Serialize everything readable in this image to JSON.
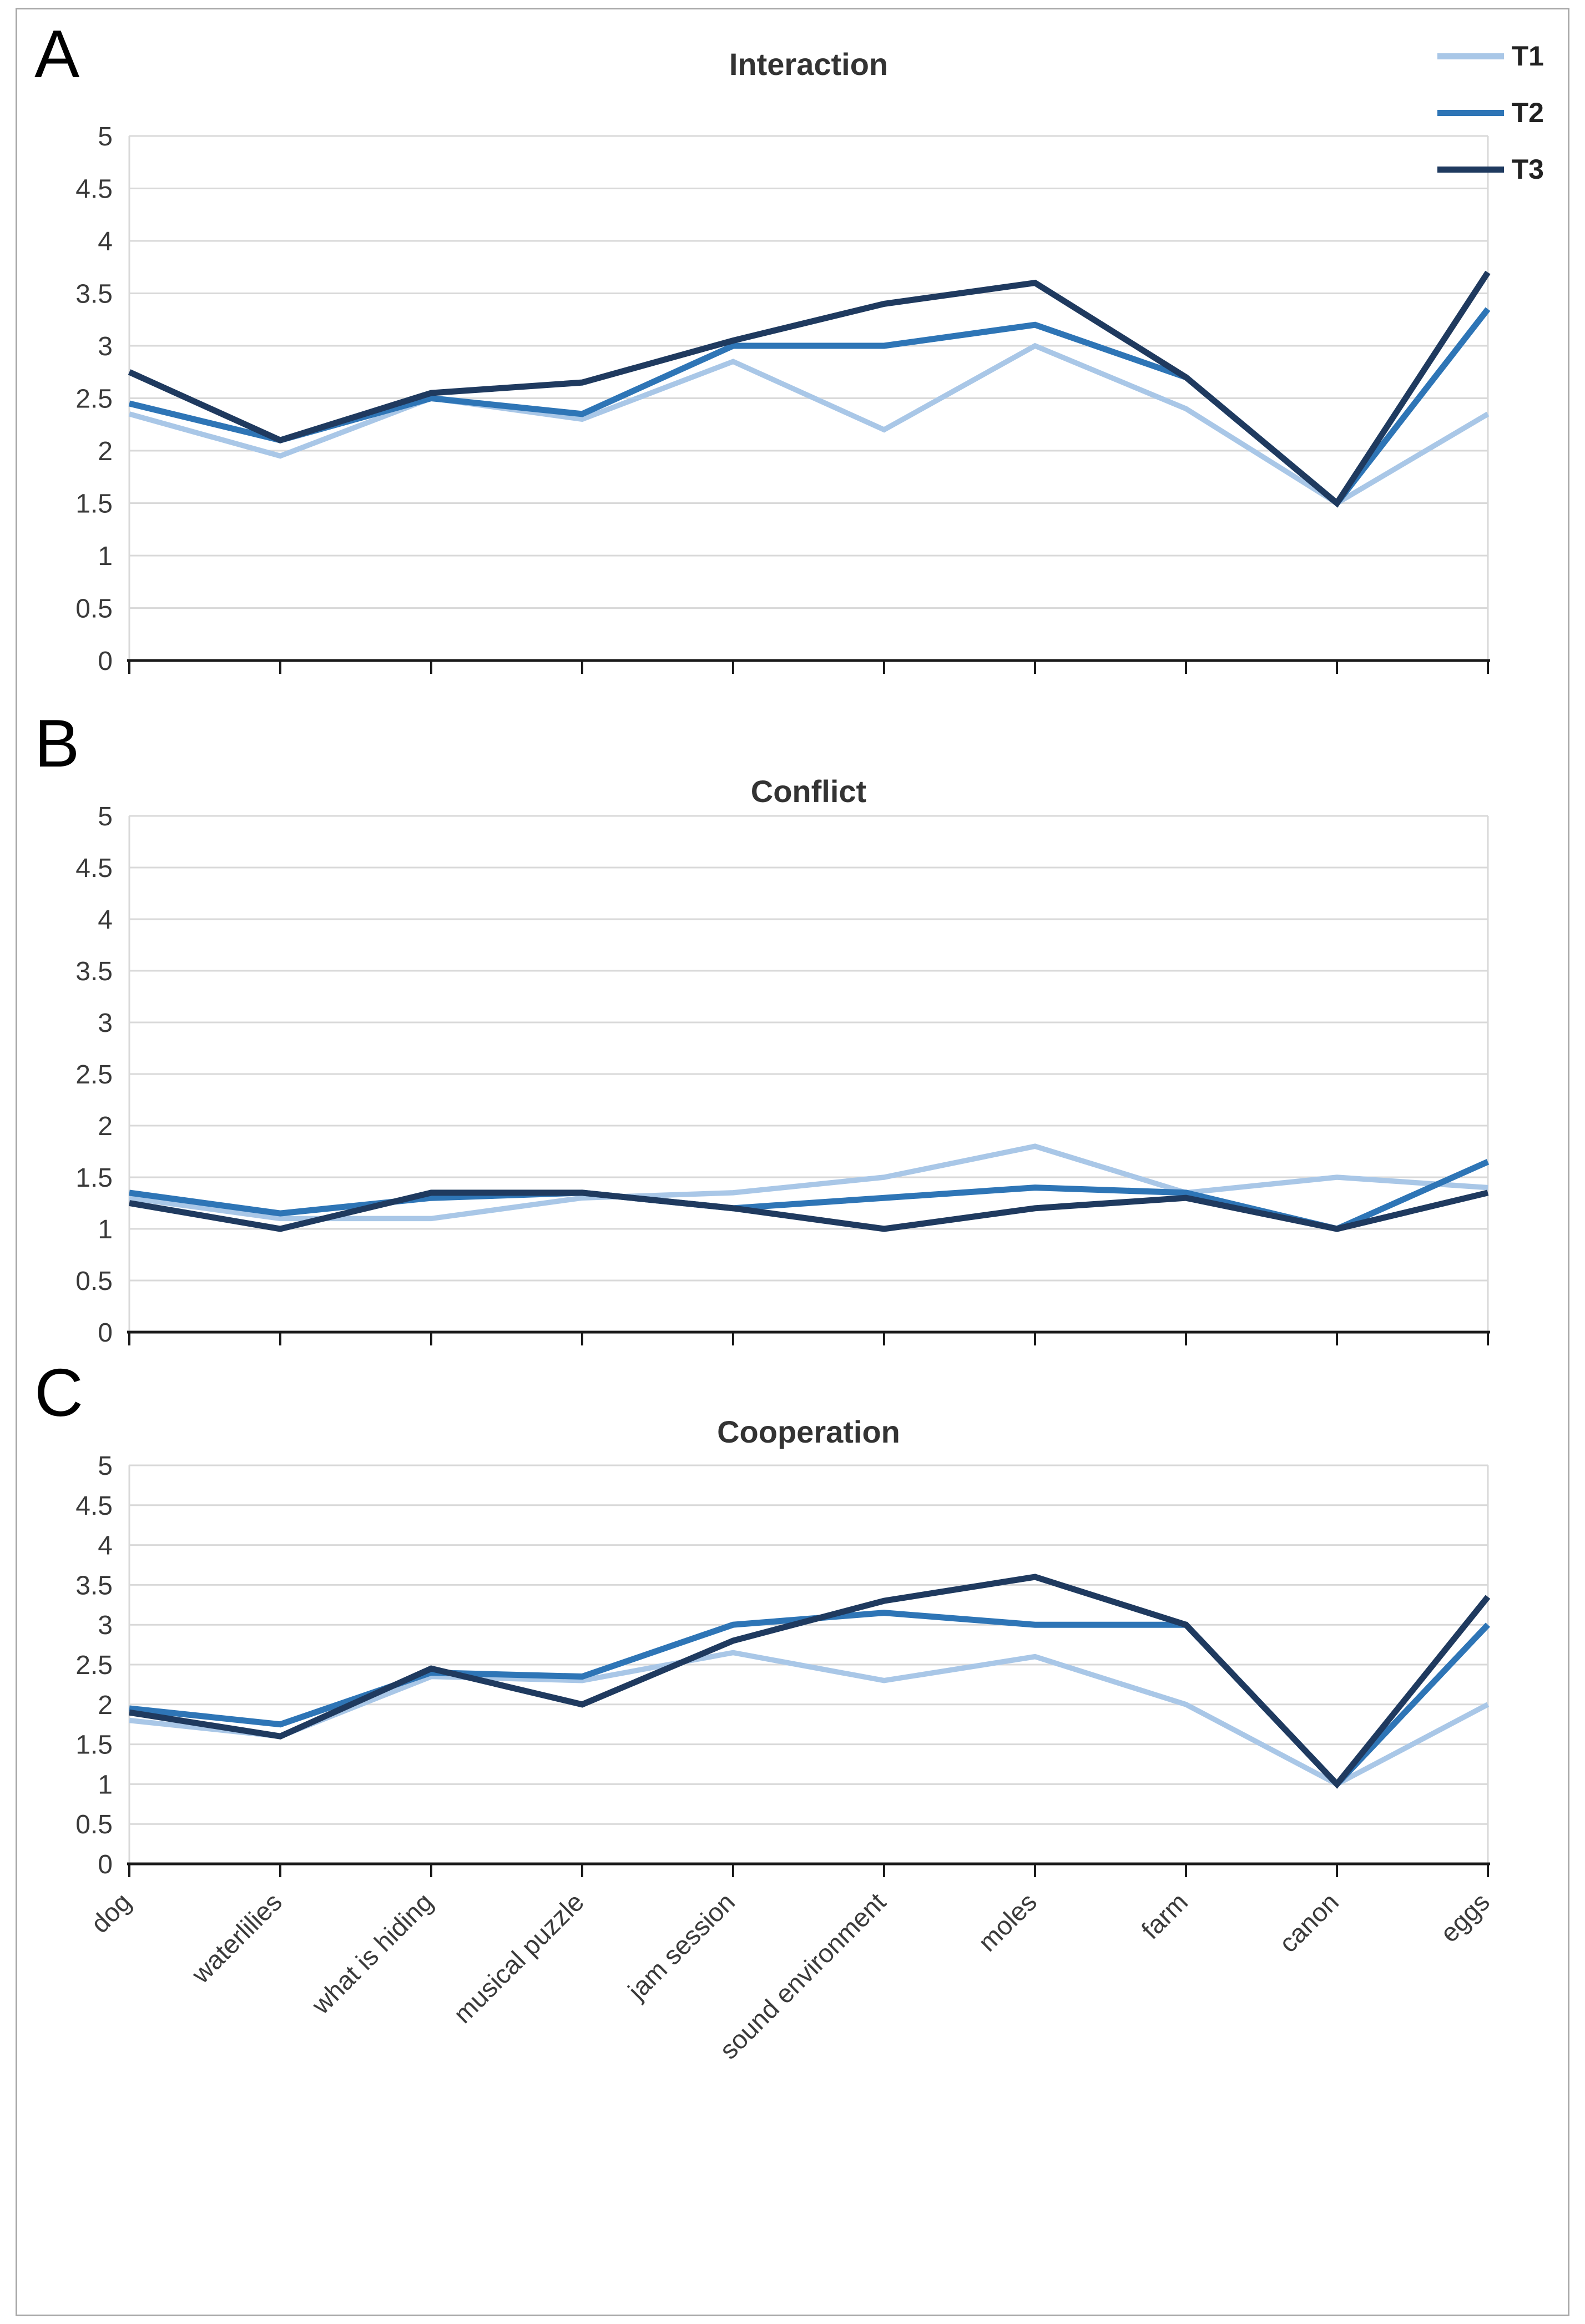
{
  "legend": {
    "position": "top-right",
    "entries": [
      {
        "label": "T1",
        "color": "#A9C7E7"
      },
      {
        "label": "T2",
        "color": "#2E75B6"
      },
      {
        "label": "T3",
        "color": "#1F3A5F"
      }
    ]
  },
  "chart_data": [
    {
      "type": "line",
      "panel_letter": "A",
      "title": "Interaction",
      "categories": [
        "dog",
        "waterlilies",
        "what is hiding",
        "musical puzzle",
        "jam session",
        "sound environment",
        "moles",
        "farm",
        "canon",
        "eggs"
      ],
      "series": [
        {
          "name": "T1",
          "color": "#A9C7E7",
          "values": [
            2.35,
            1.95,
            2.5,
            2.3,
            2.85,
            2.2,
            3.0,
            2.4,
            1.5,
            2.35
          ]
        },
        {
          "name": "T2",
          "color": "#2E75B6",
          "values": [
            2.45,
            2.1,
            2.5,
            2.35,
            3.0,
            3.0,
            3.2,
            2.7,
            1.5,
            3.35
          ]
        },
        {
          "name": "T3",
          "color": "#1F3A5F",
          "values": [
            2.75,
            2.1,
            2.55,
            2.65,
            3.05,
            3.4,
            3.6,
            2.7,
            1.5,
            3.7
          ]
        }
      ],
      "ylim": [
        0,
        5
      ],
      "ytick_step": 0.5,
      "y_tick_labels": [
        "0",
        "0.5",
        "1",
        "1.5",
        "2",
        "2.5",
        "3",
        "3.5",
        "4",
        "4.5",
        "5"
      ],
      "grid": true,
      "show_x_labels": false,
      "legend_position": "top-right"
    },
    {
      "type": "line",
      "panel_letter": "B",
      "title": "Conflict",
      "categories": [
        "dog",
        "waterlilies",
        "what is hiding",
        "musical puzzle",
        "jam session",
        "sound environment",
        "moles",
        "farm",
        "canon",
        "eggs"
      ],
      "series": [
        {
          "name": "T1",
          "color": "#A9C7E7",
          "values": [
            1.3,
            1.1,
            1.1,
            1.3,
            1.35,
            1.5,
            1.8,
            1.35,
            1.5,
            1.4
          ]
        },
        {
          "name": "T2",
          "color": "#2E75B6",
          "values": [
            1.35,
            1.15,
            1.3,
            1.35,
            1.2,
            1.3,
            1.4,
            1.35,
            1.0,
            1.65
          ]
        },
        {
          "name": "T3",
          "color": "#1F3A5F",
          "values": [
            1.25,
            1.0,
            1.35,
            1.35,
            1.2,
            1.0,
            1.2,
            1.3,
            1.0,
            1.35
          ]
        }
      ],
      "ylim": [
        0,
        5
      ],
      "ytick_step": 0.5,
      "y_tick_labels": [
        "0",
        "0.5",
        "1",
        "1.5",
        "2",
        "2.5",
        "3",
        "3.5",
        "4",
        "4.5",
        "5"
      ],
      "grid": true,
      "show_x_labels": false
    },
    {
      "type": "line",
      "panel_letter": "C",
      "title": "Cooperation",
      "categories": [
        "dog",
        "waterlilies",
        "what is hiding",
        "musical puzzle",
        "jam session",
        "sound environment",
        "moles",
        "farm",
        "canon",
        "eggs"
      ],
      "series": [
        {
          "name": "T1",
          "color": "#A9C7E7",
          "values": [
            1.8,
            1.6,
            2.35,
            2.3,
            2.65,
            2.3,
            2.6,
            2.0,
            1.0,
            2.0
          ]
        },
        {
          "name": "T2",
          "color": "#2E75B6",
          "values": [
            1.95,
            1.75,
            2.4,
            2.35,
            3.0,
            3.15,
            3.0,
            3.0,
            1.0,
            3.0
          ]
        },
        {
          "name": "T3",
          "color": "#1F3A5F",
          "values": [
            1.9,
            1.6,
            2.45,
            2.0,
            2.8,
            3.3,
            3.6,
            3.0,
            1.0,
            3.35
          ]
        }
      ],
      "ylim": [
        0,
        5
      ],
      "ytick_step": 0.5,
      "y_tick_labels": [
        "0",
        "0.5",
        "1",
        "1.5",
        "2",
        "2.5",
        "3",
        "3.5",
        "4",
        "4.5",
        "5"
      ],
      "grid": true,
      "show_x_labels": true
    }
  ]
}
